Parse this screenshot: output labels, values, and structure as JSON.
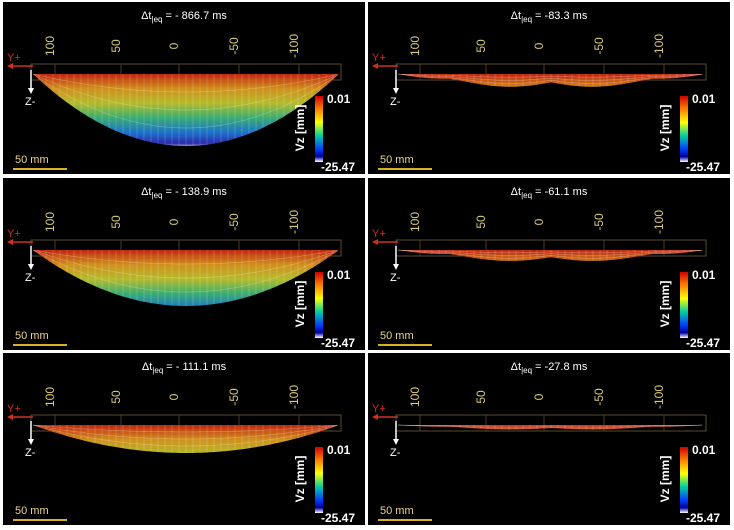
{
  "panels": [
    {
      "title": {
        "symbol": "Δt",
        "subscript": "|eq",
        "value": "= - 866.7 ms"
      },
      "axis_ticks": [
        "100",
        "50",
        "0",
        "-50",
        "-100"
      ],
      "y_label": "Y+",
      "z_label": "Z-",
      "colorbar": {
        "label": "Vz [mm]",
        "max": "0.01",
        "min": "-25.47"
      },
      "scale_bar": "50 mm"
    },
    {
      "title": {
        "symbol": "Δt",
        "subscript": "|eq",
        "value": "= -83.3 ms"
      },
      "axis_ticks": [
        "100",
        "50",
        "0",
        "-50",
        "-100"
      ],
      "y_label": "Y+",
      "z_label": "Z-",
      "colorbar": {
        "label": "Vz [mm]",
        "max": "0.01",
        "min": "-25.47"
      },
      "scale_bar": "50 mm"
    },
    {
      "title": {
        "symbol": "Δt",
        "subscript": "|eq",
        "value": "= - 138.9 ms"
      },
      "axis_ticks": [
        "100",
        "50",
        "0",
        "-50",
        "-100"
      ],
      "y_label": "Y+",
      "z_label": "Z-",
      "colorbar": {
        "label": "Vz [mm]",
        "max": "0.01",
        "min": "-25.47"
      },
      "scale_bar": "50 mm"
    },
    {
      "title": {
        "symbol": "Δt",
        "subscript": "|eq",
        "value": "= -61.1 ms"
      },
      "axis_ticks": [
        "100",
        "50",
        "0",
        "-50",
        "-100"
      ],
      "y_label": "Y+",
      "z_label": "Z-",
      "colorbar": {
        "label": "Vz [mm]",
        "max": "0.01",
        "min": "-25.47"
      },
      "scale_bar": "50 mm"
    },
    {
      "title": {
        "symbol": "Δt",
        "subscript": "|eq",
        "value": "= - 111.1 ms"
      },
      "axis_ticks": [
        "100",
        "50",
        "0",
        "-50",
        "-100"
      ],
      "y_label": "Y+",
      "z_label": "Z-",
      "colorbar": {
        "label": "Vz [mm]",
        "max": "0.01",
        "min": "-25.47"
      },
      "scale_bar": "50 mm"
    },
    {
      "title": {
        "symbol": "Δt",
        "subscript": "|eq",
        "value": "= -27.8 ms"
      },
      "axis_ticks": [
        "100",
        "50",
        "0",
        "-50",
        "-100"
      ],
      "y_label": "Y+",
      "z_label": "Z-",
      "colorbar": {
        "label": "Vz [mm]",
        "max": "0.01",
        "min": "-25.47"
      },
      "scale_bar": "50 mm"
    }
  ]
}
